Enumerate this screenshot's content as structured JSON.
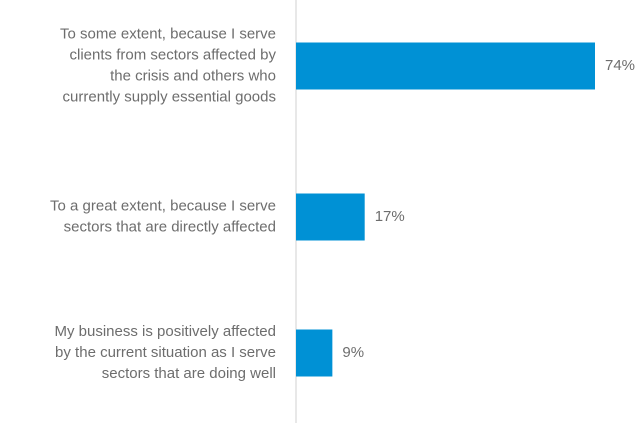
{
  "chart_data": {
    "type": "bar",
    "orientation": "horizontal",
    "title": "",
    "xlabel": "",
    "ylabel": "",
    "xlim": [
      0,
      74
    ],
    "grid": false,
    "legend": "none",
    "bar_color": "#0091d5",
    "axis_color": "#d0d0d0",
    "text_color": "#6d6d6d",
    "categories": [
      "To some extent, because I serve clients from sectors affected by the crisis and others who currently supply essential goods",
      "To a great extent, because I serve sectors that are directly affected",
      "My business is positively affected by the current situation as I serve sectors that are doing well"
    ],
    "category_lines": [
      [
        "To some extent, because I serve",
        "clients from sectors affected by",
        "the crisis and others who",
        "currently supply essential goods"
      ],
      [
        "To a great extent, because I serve",
        "sectors that are directly affected"
      ],
      [
        "My business is positively affected",
        "by the current situation as I serve",
        "sectors that are doing well"
      ]
    ],
    "values": [
      74,
      17,
      9
    ],
    "value_labels": [
      "74%",
      "17%",
      "9%"
    ]
  }
}
